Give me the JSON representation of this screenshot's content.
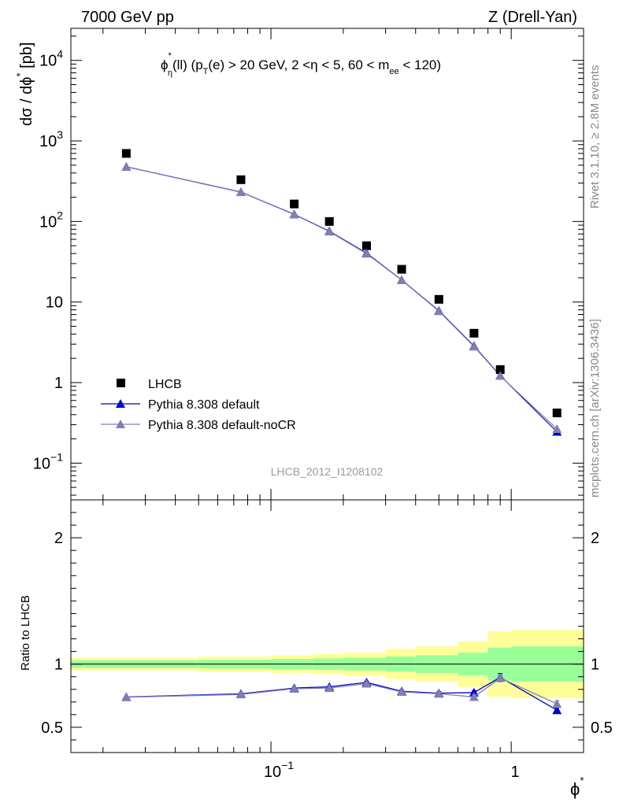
{
  "header": {
    "left": "7000 GeV pp",
    "right": "Z (Drell-Yan)"
  },
  "plot_title": "ϕ*η(ll) (pT(e) > 20 GeV, 2 <η < 5, 60 < mee < 120)",
  "watermark": "LHCB_2012_I1208102",
  "side_labels": {
    "rivet": "Rivet 3.1.10, ≥ 2.8M events",
    "mcplots": "mcplots.cern.ch [arXiv:1306.3436]"
  },
  "colors": {
    "data": "#000000",
    "default": "#0000cc",
    "nocr": "#7f7fb2",
    "band_inner": "#99ff99",
    "band_outer": "#ffff99"
  },
  "chart_data": [
    {
      "type": "scatter",
      "panel": "main",
      "ylabel": "dσ / dϕ* [pb]",
      "xscale": "log",
      "yscale": "log",
      "xlim": [
        0.0147,
        2.0
      ],
      "ylim": [
        0.035,
        25000
      ],
      "yticks": [
        "10⁻¹",
        "1",
        "10",
        "10²",
        "10³",
        "10⁴"
      ],
      "legend_position": "bottom-left",
      "x": [
        0.025,
        0.075,
        0.125,
        0.175,
        0.25,
        0.35,
        0.5,
        0.7,
        0.9,
        1.55
      ],
      "series": [
        {
          "name": "LHCB",
          "marker": "square",
          "values": [
            700,
            330,
            165,
            100,
            50,
            25.5,
            10.8,
            4.1,
            1.45,
            0.42
          ]
        },
        {
          "name": "Pythia 8.308 default",
          "marker": "triangle",
          "values": [
            478,
            232,
            123,
            76,
            40.5,
            18.8,
            7.8,
            2.85,
            1.22,
            0.245
          ]
        },
        {
          "name": "Pythia 8.308 default-noCR",
          "marker": "triangle",
          "values": [
            476,
            231,
            122,
            75,
            39.8,
            18.7,
            7.7,
            2.8,
            1.21,
            0.265
          ]
        }
      ]
    },
    {
      "type": "line",
      "panel": "ratio",
      "ylabel": "Ratio to LHCB",
      "xlabel": "ϕ*",
      "xscale": "log",
      "xlim": [
        0.0147,
        2.0
      ],
      "ylim": [
        0.3,
        2.3
      ],
      "yticks": [
        "0.5",
        "1",
        "2"
      ],
      "xticks": [
        "10⁻¹",
        "1"
      ],
      "reference": 1.0,
      "x": [
        0.025,
        0.075,
        0.125,
        0.175,
        0.25,
        0.35,
        0.5,
        0.7,
        0.9,
        1.55
      ],
      "bins": [
        [
          0.0147,
          0.05
        ],
        [
          0.05,
          0.1
        ],
        [
          0.1,
          0.15
        ],
        [
          0.15,
          0.2
        ],
        [
          0.2,
          0.3
        ],
        [
          0.3,
          0.4
        ],
        [
          0.4,
          0.6
        ],
        [
          0.6,
          0.8
        ],
        [
          0.8,
          1.0
        ],
        [
          1.0,
          2.0
        ]
      ],
      "band_inner": [
        0.03,
        0.035,
        0.04,
        0.045,
        0.05,
        0.06,
        0.07,
        0.09,
        0.13,
        0.14
      ],
      "band_outer": [
        0.05,
        0.06,
        0.07,
        0.08,
        0.09,
        0.12,
        0.14,
        0.18,
        0.26,
        0.27
      ],
      "series": [
        {
          "name": "Pythia 8.308 default",
          "values": [
            0.74,
            0.765,
            0.81,
            0.82,
            0.855,
            0.785,
            0.77,
            0.775,
            0.895,
            0.635
          ],
          "errors": [
            0.005,
            0.006,
            0.007,
            0.008,
            0.009,
            0.01,
            0.012,
            0.015,
            0.03,
            0.02
          ]
        },
        {
          "name": "Pythia 8.308 default-noCR",
          "values": [
            0.738,
            0.76,
            0.805,
            0.81,
            0.845,
            0.78,
            0.765,
            0.74,
            0.89,
            0.685
          ],
          "errors": [
            0.005,
            0.006,
            0.007,
            0.008,
            0.009,
            0.01,
            0.012,
            0.015,
            0.03,
            0.025
          ]
        }
      ]
    }
  ]
}
